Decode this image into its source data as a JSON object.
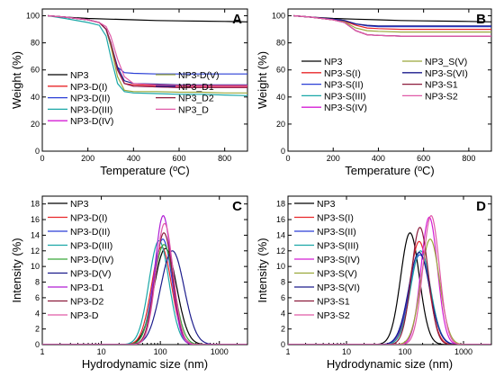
{
  "chart_data": [
    {
      "panel": "A",
      "type": "line",
      "xlabel": "Temperature (ºC)",
      "ylabel": "Weight (%)",
      "xlim": [
        0,
        900
      ],
      "ylim": [
        0,
        105
      ],
      "xticks": [
        0,
        200,
        400,
        600,
        800
      ],
      "yticks": [
        0,
        20,
        40,
        60,
        80,
        100
      ],
      "legend": {
        "columns": 2,
        "placement": "bottom"
      },
      "series": [
        {
          "name": "NP3",
          "color": "#000000",
          "x": [
            25,
            100,
            200,
            300,
            400,
            500,
            600,
            700,
            800,
            900
          ],
          "y": [
            100,
            99,
            98,
            97.5,
            97,
            96.5,
            96.2,
            96,
            95.8,
            95.5
          ]
        },
        {
          "name": "NP3-D(I)",
          "color": "#e8272a",
          "x": [
            25,
            100,
            200,
            250,
            280,
            300,
            330,
            360,
            400,
            500,
            600,
            700,
            800,
            900
          ],
          "y": [
            100,
            99,
            97,
            95,
            90,
            80,
            60,
            50,
            49,
            48.5,
            48,
            48,
            48,
            48
          ]
        },
        {
          "name": "NP3-D(II)",
          "color": "#2a3fd6",
          "x": [
            25,
            100,
            200,
            250,
            280,
            300,
            330,
            360,
            400,
            500,
            600,
            700,
            800,
            900
          ],
          "y": [
            100,
            99,
            97,
            95,
            90,
            78,
            62,
            58,
            57.5,
            57,
            57,
            57,
            57,
            57
          ]
        },
        {
          "name": "NP3-D(III)",
          "color": "#1aa7a7",
          "x": [
            25,
            100,
            200,
            250,
            280,
            300,
            330,
            360,
            400,
            500,
            600,
            700,
            800,
            900
          ],
          "y": [
            100,
            98,
            95,
            93,
            85,
            70,
            50,
            44,
            43,
            42.5,
            42,
            42,
            41.5,
            41
          ]
        },
        {
          "name": "NP3-D(IV)",
          "color": "#d41ed4",
          "x": [
            25,
            100,
            200,
            250,
            280,
            300,
            330,
            360,
            400,
            500,
            600,
            700,
            800,
            900
          ],
          "y": [
            100,
            99,
            97,
            95,
            90,
            80,
            60,
            50,
            48,
            47.5,
            47,
            47,
            47,
            47
          ]
        },
        {
          "name": "NP3-D(V)",
          "color": "#9aa83a",
          "x": [
            25,
            100,
            200,
            250,
            280,
            300,
            330,
            360,
            400,
            500,
            600,
            700,
            800,
            900
          ],
          "y": [
            100,
            99,
            97,
            95,
            90,
            78,
            55,
            45,
            44,
            44,
            43.5,
            43.5,
            43,
            43
          ]
        },
        {
          "name": "NP3_D1",
          "color": "#1c1c8c",
          "x": [
            25,
            100,
            200,
            250,
            280,
            300,
            330,
            360,
            400,
            500,
            600,
            700,
            800,
            900
          ],
          "y": [
            100,
            99,
            97,
            95,
            90,
            80,
            62,
            52,
            50,
            49.5,
            49,
            49,
            49,
            49
          ]
        },
        {
          "name": "NP3_D2",
          "color": "#8c1c3c",
          "x": [
            25,
            100,
            200,
            250,
            280,
            300,
            330,
            360,
            400,
            500,
            600,
            700,
            800,
            900
          ],
          "y": [
            100,
            99,
            97,
            95,
            90,
            80,
            60,
            50,
            48,
            47.5,
            47,
            47,
            47,
            47
          ]
        },
        {
          "name": "NP3_D",
          "color": "#e05aa8",
          "x": [
            25,
            100,
            200,
            250,
            280,
            300,
            330,
            360,
            400,
            500,
            600,
            700,
            800,
            900
          ],
          "y": [
            100,
            99,
            97,
            95,
            92,
            85,
            68,
            55,
            50,
            49,
            48.5,
            48.5,
            48.5,
            48.5
          ]
        }
      ]
    },
    {
      "panel": "B",
      "type": "line",
      "xlabel": "Temperature (ºC)",
      "ylabel": "Weight (%)",
      "xlim": [
        0,
        900
      ],
      "ylim": [
        0,
        105
      ],
      "xticks": [
        0,
        200,
        400,
        600,
        800
      ],
      "yticks": [
        0,
        20,
        40,
        60,
        80,
        100
      ],
      "legend": {
        "columns": 2,
        "placement": "bottom"
      },
      "series": [
        {
          "name": "NP3",
          "color": "#000000",
          "x": [
            25,
            100,
            200,
            300,
            400,
            500,
            600,
            700,
            800,
            900
          ],
          "y": [
            100,
            99,
            98,
            97.5,
            97,
            96.5,
            96.2,
            96,
            95.8,
            95.5
          ]
        },
        {
          "name": "NP3-S(I)",
          "color": "#e8272a",
          "x": [
            25,
            100,
            200,
            250,
            300,
            350,
            400,
            500,
            600,
            700,
            800,
            900
          ],
          "y": [
            100,
            99,
            97,
            96,
            93,
            91,
            90.5,
            90,
            90,
            90,
            90,
            90
          ]
        },
        {
          "name": "NP3-S(II)",
          "color": "#2a3fd6",
          "x": [
            25,
            100,
            200,
            250,
            300,
            350,
            400,
            500,
            600,
            700,
            800,
            900
          ],
          "y": [
            100,
            99,
            97.5,
            96.5,
            94,
            92.5,
            92,
            92,
            92,
            92,
            92,
            92
          ]
        },
        {
          "name": "NP3-S(III)",
          "color": "#1aa7a7",
          "x": [
            25,
            100,
            200,
            250,
            300,
            350,
            400,
            500,
            600,
            700,
            800,
            900
          ],
          "y": [
            100,
            99,
            97,
            95,
            89,
            86,
            85.5,
            85,
            85,
            85,
            85,
            85
          ]
        },
        {
          "name": "NP3-S(IV)",
          "color": "#d41ed4",
          "x": [
            25,
            100,
            200,
            250,
            300,
            350,
            400,
            500,
            600,
            700,
            800,
            900
          ],
          "y": [
            100,
            99,
            97,
            95,
            89,
            86,
            85.5,
            85,
            85,
            85,
            85,
            85
          ]
        },
        {
          "name": "NP3_S(V)",
          "color": "#9aa83a",
          "x": [
            25,
            100,
            200,
            250,
            300,
            350,
            400,
            500,
            600,
            700,
            800,
            900
          ],
          "y": [
            100,
            99,
            97,
            95.5,
            91,
            89,
            88.5,
            88,
            88,
            88,
            88,
            88
          ]
        },
        {
          "name": "NP3-S(VI)",
          "color": "#1c1c8c",
          "x": [
            25,
            100,
            200,
            250,
            300,
            350,
            400,
            500,
            600,
            700,
            800,
            900
          ],
          "y": [
            100,
            99,
            97.5,
            96.5,
            94,
            93,
            92.5,
            92.5,
            92.5,
            92.5,
            92.5,
            92.5
          ]
        },
        {
          "name": "NP3-S1",
          "color": "#8c1c3c",
          "x": [
            25,
            100,
            200,
            250,
            300,
            350,
            400,
            500,
            600,
            700,
            800,
            900
          ],
          "y": [
            100,
            99,
            97,
            95,
            89,
            86,
            85.5,
            85,
            85,
            85,
            85,
            85
          ]
        },
        {
          "name": "NP3-S2",
          "color": "#e05aa8",
          "x": [
            25,
            100,
            200,
            250,
            300,
            350,
            400,
            500,
            600,
            700,
            800,
            900
          ],
          "y": [
            100,
            99,
            97,
            95,
            89,
            86,
            85.5,
            85,
            85,
            85,
            85,
            85
          ]
        }
      ]
    },
    {
      "panel": "C",
      "type": "line",
      "xscale": "log",
      "xlabel": "Hydrodynamic size (nm)",
      "ylabel": "Intensity (%)",
      "xlim": [
        1,
        3000
      ],
      "ylim": [
        0,
        19
      ],
      "xticks": [
        1,
        10,
        100,
        1000
      ],
      "yticks": [
        0,
        2,
        4,
        6,
        8,
        10,
        12,
        14,
        16,
        18
      ],
      "legend": {
        "columns": 1,
        "placement": "top-left"
      },
      "series": [
        {
          "name": "NP3",
          "color": "#000000",
          "peak": 122,
          "amp": 12.3,
          "width": 0.19
        },
        {
          "name": "NP3-D(I)",
          "color": "#e8272a",
          "peak": 105,
          "amp": 12.5,
          "width": 0.17
        },
        {
          "name": "NP3-D(II)",
          "color": "#2a3fd6",
          "peak": 110,
          "amp": 13.5,
          "width": 0.16
        },
        {
          "name": "NP3-D(III)",
          "color": "#1aa7a7",
          "peak": 95,
          "amp": 13.3,
          "width": 0.17
        },
        {
          "name": "NP3-D(IV)",
          "color": "#3aa83a",
          "peak": 115,
          "amp": 12.8,
          "width": 0.17
        },
        {
          "name": "NP3-D(V)",
          "color": "#1c1c8c",
          "peak": 160,
          "amp": 12.0,
          "width": 0.2
        },
        {
          "name": "NP3-D1",
          "color": "#b01ed4",
          "peak": 112,
          "amp": 16.5,
          "width": 0.14
        },
        {
          "name": "NP3-D2",
          "color": "#8c1c3c",
          "peak": 115,
          "amp": 14.3,
          "width": 0.15
        },
        {
          "name": "NP3-D",
          "color": "#e05aa8",
          "peak": 118,
          "amp": 15.5,
          "width": 0.145
        }
      ]
    },
    {
      "panel": "D",
      "type": "line",
      "xscale": "log",
      "xlabel": "Hydrodynamic size (nm)",
      "ylabel": "Intensity (%)",
      "xlim": [
        1,
        3000
      ],
      "ylim": [
        0,
        19
      ],
      "xticks": [
        1,
        10,
        100,
        1000
      ],
      "yticks": [
        0,
        2,
        4,
        6,
        8,
        10,
        12,
        14,
        16,
        18
      ],
      "legend": {
        "columns": 1,
        "placement": "top-left"
      },
      "series": [
        {
          "name": "NP3",
          "color": "#000000",
          "peak": 122,
          "amp": 14.3,
          "width": 0.16
        },
        {
          "name": "NP3-S(I)",
          "color": "#e8272a",
          "peak": 175,
          "amp": 13.2,
          "width": 0.16
        },
        {
          "name": "NP3-S(II)",
          "color": "#2a3fd6",
          "peak": 180,
          "amp": 11.5,
          "width": 0.18
        },
        {
          "name": "NP3-S(III)",
          "color": "#1aa7a7",
          "peak": 185,
          "amp": 12.0,
          "width": 0.17
        },
        {
          "name": "NP3-S(IV)",
          "color": "#d41ed4",
          "peak": 260,
          "amp": 16.3,
          "width": 0.14
        },
        {
          "name": "NP3-S(V)",
          "color": "#9aa83a",
          "peak": 270,
          "amp": 13.5,
          "width": 0.16
        },
        {
          "name": "NP3-S(VI)",
          "color": "#1c1c8c",
          "peak": 175,
          "amp": 11.8,
          "width": 0.18
        },
        {
          "name": "NP3-S1",
          "color": "#8c1c3c",
          "peak": 180,
          "amp": 15.0,
          "width": 0.145
        },
        {
          "name": "NP3-S2",
          "color": "#e05aa8",
          "peak": 280,
          "amp": 16.5,
          "width": 0.14
        }
      ]
    }
  ]
}
